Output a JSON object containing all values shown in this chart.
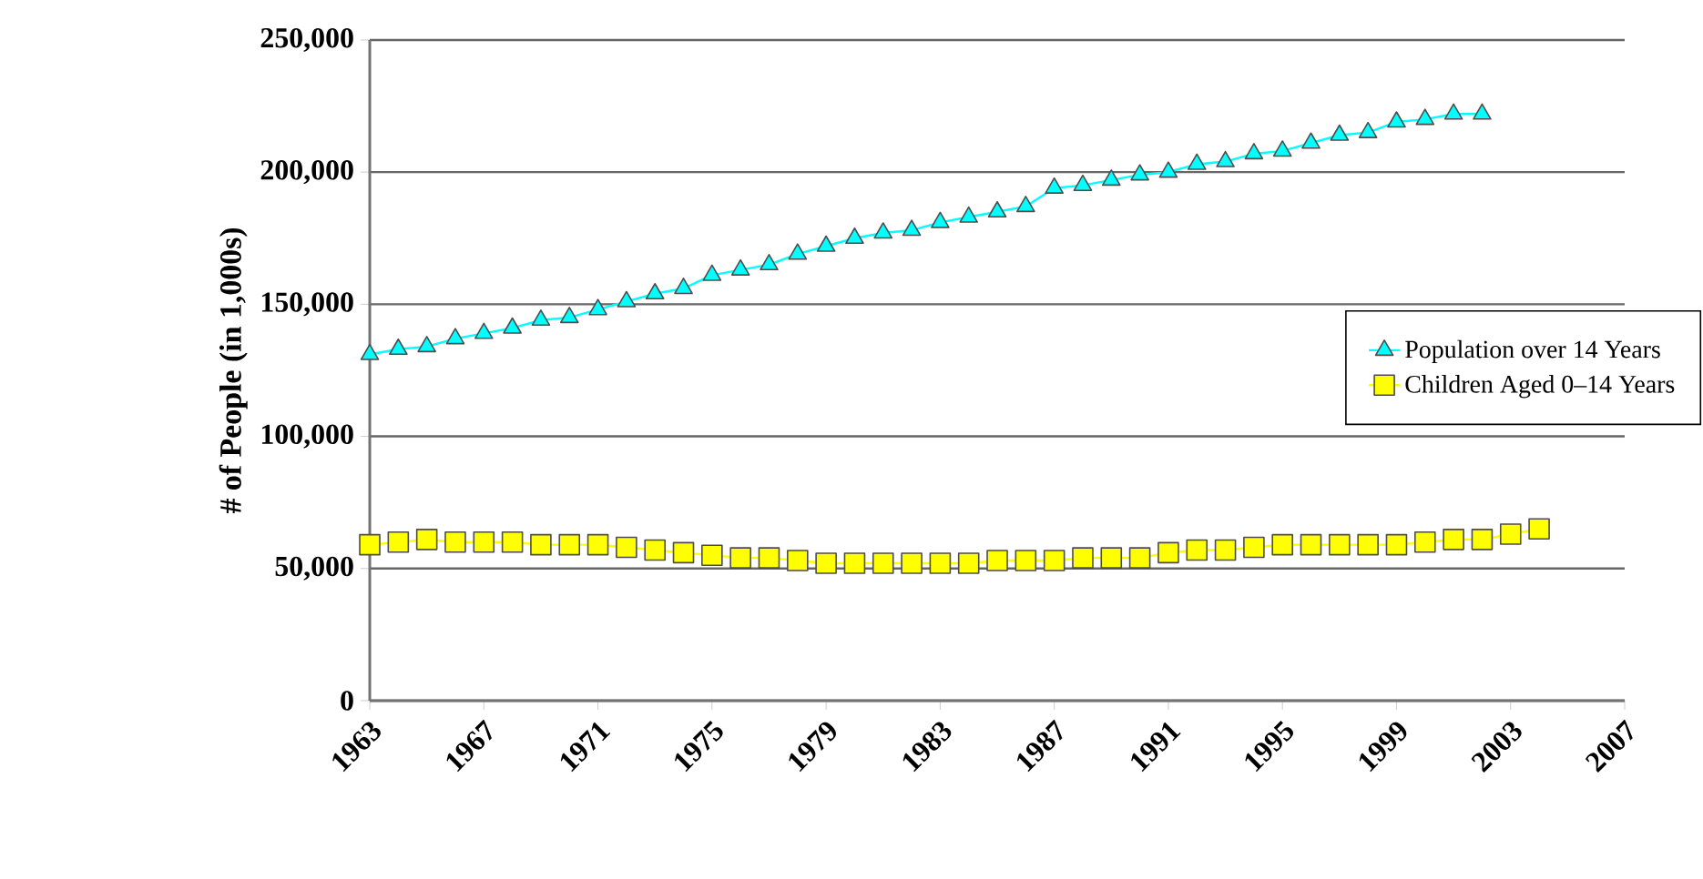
{
  "chart_data": {
    "type": "line",
    "ylabel": "# of People (in 1,000s)",
    "x": [
      1963,
      1964,
      1965,
      1966,
      1967,
      1968,
      1969,
      1970,
      1971,
      1972,
      1973,
      1974,
      1975,
      1976,
      1977,
      1978,
      1979,
      1980,
      1981,
      1982,
      1983,
      1984,
      1985,
      1986,
      1987,
      1988,
      1989,
      1990,
      1991,
      1992,
      1993,
      1994,
      1995,
      1996,
      1997,
      1998,
      1999,
      2000,
      2001,
      2002,
      2003,
      2004
    ],
    "series": [
      {
        "name": "Population over 14 Years",
        "color": "#00ffff",
        "marker": "triangle",
        "values": [
          131000,
          133000,
          134000,
          137000,
          139000,
          141000,
          144000,
          145000,
          148000,
          151000,
          154000,
          156000,
          161000,
          163000,
          165000,
          169000,
          172000,
          175000,
          177000,
          178000,
          181000,
          183000,
          185000,
          187000,
          194000,
          195000,
          197000,
          199000,
          200000,
          203000,
          204000,
          207000,
          208000,
          211000,
          214000,
          215000,
          219000,
          220000,
          222000,
          222000,
          null,
          null
        ]
      },
      {
        "name": "Children Aged 0–14 Years",
        "color": "#ffff00",
        "marker": "square",
        "values": [
          59000,
          60000,
          61000,
          60000,
          60000,
          60000,
          59000,
          59000,
          59000,
          58000,
          57000,
          56000,
          55000,
          54000,
          54000,
          53000,
          52000,
          52000,
          52000,
          52000,
          52000,
          52000,
          53000,
          53000,
          53000,
          54000,
          54000,
          54000,
          56000,
          57000,
          57000,
          58000,
          59000,
          59000,
          59000,
          59000,
          59000,
          60000,
          61000,
          61000,
          63000,
          65000
        ]
      }
    ],
    "xlim": [
      1963,
      2007
    ],
    "xticks": [
      1963,
      1967,
      1971,
      1975,
      1979,
      1983,
      1987,
      1991,
      1995,
      1999,
      2003,
      2007
    ],
    "ylim": [
      0,
      250000
    ],
    "yticks": [
      0,
      {
        "value": 50000,
        "label": "50,000"
      },
      {
        "value": 100000,
        "label": "100,000"
      },
      {
        "value": 150000,
        "label": "150,000"
      },
      {
        "value": 200000,
        "label": "200,000"
      },
      {
        "value": 250000,
        "label": "250,000"
      }
    ],
    "grid": "y",
    "legend": "right",
    "line_style": "solid"
  }
}
